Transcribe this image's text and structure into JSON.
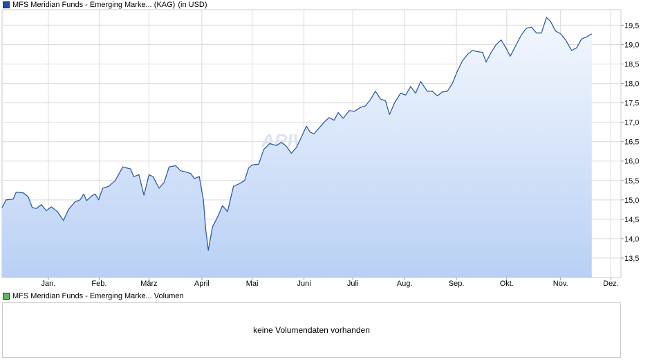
{
  "legend": {
    "main_label": "MFS Meridian Funds - Emerging Marke... (KAG)",
    "main_unit": "(in USD)",
    "main_color": "#1f4e9c",
    "volume_label": "MFS Meridian Funds - Emerging Marke... Volumen",
    "volume_color": "#5cb85c"
  },
  "watermark": "ARIVA.DE",
  "volume": {
    "empty_message": "keine Volumendaten vorhanden"
  },
  "colors": {
    "line": "#2a5ca8",
    "fill_top": "#f4f8fe",
    "fill_bottom": "#b9d0f4",
    "grid": "#d9d9d9"
  },
  "chart_data": {
    "type": "area",
    "title": "MFS Meridian Funds - Emerging Marke... (KAG) (in USD)",
    "xlabel": "",
    "ylabel": "",
    "ylim": [
      13.0,
      19.9
    ],
    "xlim": [
      0,
      12.3
    ],
    "y_ticks": [
      13.5,
      14.0,
      14.5,
      15.0,
      15.5,
      16.0,
      16.5,
      17.0,
      17.5,
      18.0,
      18.5,
      19.0,
      19.5
    ],
    "y_tick_labels": [
      "13,5",
      "14,0",
      "14,5",
      "15,0",
      "15,5",
      "16,0",
      "16,5",
      "17,0",
      "17,5",
      "18,0",
      "18,5",
      "19,0",
      "19,5"
    ],
    "x_ticks": [
      0.92,
      1.93,
      2.92,
      3.97,
      4.97,
      6.0,
      6.97,
      8.0,
      9.03,
      10.03,
      11.1,
      12.1
    ],
    "x_tick_labels": [
      "Jan.",
      "Feb.",
      "März",
      "April",
      "Mai",
      "Juni",
      "Juli",
      "Aug.",
      "Sep.",
      "Okt.",
      "Nov.",
      "Dez."
    ],
    "grid": true,
    "y_axis_position": "right",
    "series": [
      {
        "values": [
          [
            0.0,
            14.8
          ],
          [
            0.08,
            15.0
          ],
          [
            0.22,
            15.02
          ],
          [
            0.28,
            15.2
          ],
          [
            0.42,
            15.18
          ],
          [
            0.52,
            15.08
          ],
          [
            0.6,
            14.8
          ],
          [
            0.68,
            14.78
          ],
          [
            0.78,
            14.88
          ],
          [
            0.88,
            14.72
          ],
          [
            0.98,
            14.82
          ],
          [
            1.1,
            14.7
          ],
          [
            1.22,
            14.47
          ],
          [
            1.32,
            14.75
          ],
          [
            1.45,
            14.95
          ],
          [
            1.55,
            15.0
          ],
          [
            1.62,
            15.15
          ],
          [
            1.68,
            14.98
          ],
          [
            1.78,
            15.1
          ],
          [
            1.85,
            15.15
          ],
          [
            1.92,
            15.0
          ],
          [
            2.0,
            15.3
          ],
          [
            2.12,
            15.35
          ],
          [
            2.25,
            15.5
          ],
          [
            2.4,
            15.85
          ],
          [
            2.55,
            15.8
          ],
          [
            2.62,
            15.6
          ],
          [
            2.72,
            15.65
          ],
          [
            2.82,
            15.12
          ],
          [
            2.92,
            15.65
          ],
          [
            3.0,
            15.6
          ],
          [
            3.12,
            15.3
          ],
          [
            3.22,
            15.45
          ],
          [
            3.32,
            15.85
          ],
          [
            3.45,
            15.88
          ],
          [
            3.55,
            15.75
          ],
          [
            3.65,
            15.72
          ],
          [
            3.75,
            15.68
          ],
          [
            3.82,
            15.55
          ],
          [
            3.92,
            15.6
          ],
          [
            4.0,
            15.0
          ],
          [
            4.05,
            14.2
          ],
          [
            4.1,
            13.7
          ],
          [
            4.18,
            14.3
          ],
          [
            4.28,
            14.55
          ],
          [
            4.38,
            14.85
          ],
          [
            4.48,
            14.7
          ],
          [
            4.6,
            15.35
          ],
          [
            4.72,
            15.42
          ],
          [
            4.82,
            15.5
          ],
          [
            4.9,
            15.82
          ],
          [
            4.97,
            15.9
          ],
          [
            5.1,
            15.92
          ],
          [
            5.2,
            16.3
          ],
          [
            5.32,
            16.45
          ],
          [
            5.45,
            16.4
          ],
          [
            5.55,
            16.48
          ],
          [
            5.65,
            16.38
          ],
          [
            5.75,
            16.2
          ],
          [
            5.85,
            16.35
          ],
          [
            5.95,
            16.62
          ],
          [
            6.05,
            16.9
          ],
          [
            6.12,
            16.75
          ],
          [
            6.2,
            16.7
          ],
          [
            6.3,
            16.85
          ],
          [
            6.4,
            17.0
          ],
          [
            6.5,
            17.12
          ],
          [
            6.6,
            17.05
          ],
          [
            6.68,
            17.25
          ],
          [
            6.78,
            17.1
          ],
          [
            6.9,
            17.3
          ],
          [
            7.0,
            17.28
          ],
          [
            7.12,
            17.38
          ],
          [
            7.22,
            17.42
          ],
          [
            7.32,
            17.58
          ],
          [
            7.42,
            17.8
          ],
          [
            7.52,
            17.6
          ],
          [
            7.62,
            17.55
          ],
          [
            7.7,
            17.2
          ],
          [
            7.8,
            17.5
          ],
          [
            7.92,
            17.75
          ],
          [
            8.02,
            17.7
          ],
          [
            8.12,
            17.92
          ],
          [
            8.22,
            17.75
          ],
          [
            8.32,
            18.05
          ],
          [
            8.45,
            17.8
          ],
          [
            8.55,
            17.8
          ],
          [
            8.65,
            17.68
          ],
          [
            8.75,
            17.78
          ],
          [
            8.85,
            17.8
          ],
          [
            8.95,
            18.0
          ],
          [
            9.05,
            18.32
          ],
          [
            9.15,
            18.58
          ],
          [
            9.25,
            18.75
          ],
          [
            9.35,
            18.85
          ],
          [
            9.45,
            18.82
          ],
          [
            9.55,
            18.8
          ],
          [
            9.62,
            18.55
          ],
          [
            9.72,
            18.8
          ],
          [
            9.82,
            19.0
          ],
          [
            9.92,
            19.12
          ],
          [
            10.02,
            18.9
          ],
          [
            10.1,
            18.7
          ],
          [
            10.2,
            18.95
          ],
          [
            10.32,
            19.25
          ],
          [
            10.42,
            19.42
          ],
          [
            10.52,
            19.45
          ],
          [
            10.62,
            19.3
          ],
          [
            10.72,
            19.3
          ],
          [
            10.82,
            19.7
          ],
          [
            10.9,
            19.6
          ],
          [
            11.0,
            19.35
          ],
          [
            11.1,
            19.28
          ],
          [
            11.2,
            19.12
          ],
          [
            11.32,
            18.85
          ],
          [
            11.42,
            18.92
          ],
          [
            11.52,
            19.15
          ],
          [
            11.62,
            19.2
          ],
          [
            11.72,
            19.28
          ]
        ]
      }
    ]
  }
}
